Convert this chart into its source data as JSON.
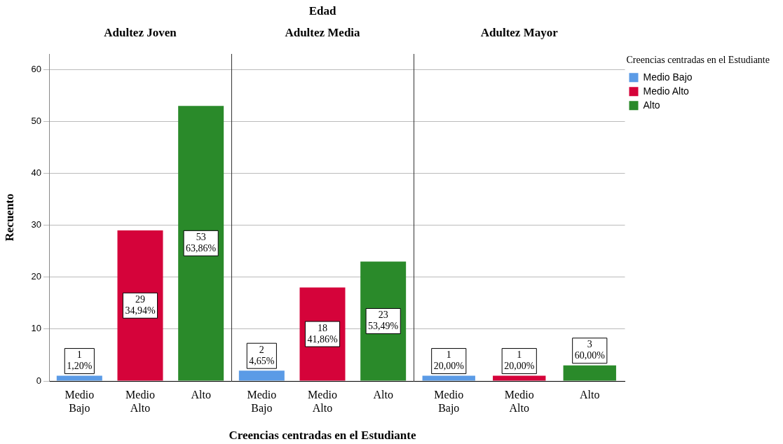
{
  "chart_data": [
    {
      "type": "bar",
      "stacked": true,
      "title": "Adultez Joven",
      "ylabel": "Recuento",
      "categories": [
        "Medio Bajo",
        "Medio Alto",
        "Alto"
      ],
      "series": [
        {
          "color": "#5b9be6",
          "values": [
            1,
            null,
            null
          ],
          "value_labels": [
            "1\n1,20%",
            null,
            null
          ]
        },
        {
          "color": "#d5033a",
          "values": [
            null,
            29,
            null
          ],
          "value_labels": [
            null,
            "29\n34,94%",
            null
          ]
        },
        {
          "color": "#2a8a2a",
          "values": [
            null,
            null,
            53
          ],
          "value_labels": [
            null,
            null,
            "53\n63,86%"
          ]
        }
      ],
      "ylim": [
        0,
        63
      ],
      "yticks": [
        0,
        10,
        20,
        30,
        40,
        50,
        60
      ],
      "grid": "y"
    },
    {
      "type": "bar",
      "stacked": true,
      "title": "Adultez Media",
      "annotations": [
        "Edad"
      ],
      "xlabel": "Creencias centradas en el Estudiante",
      "categories": [
        "Medio Bajo",
        "Medio Alto",
        "Alto"
      ],
      "series": [
        {
          "color": "#5b9be6",
          "values": [
            2,
            null,
            null
          ],
          "value_labels": [
            "2\n4,65%",
            null,
            null
          ]
        },
        {
          "color": "#d5033a",
          "values": [
            null,
            18,
            null
          ],
          "value_labels": [
            null,
            "18\n41,86%",
            null
          ]
        },
        {
          "color": "#2a8a2a",
          "values": [
            null,
            null,
            23
          ],
          "value_labels": [
            null,
            null,
            "23\n53,49%"
          ]
        }
      ],
      "ylim": [
        0,
        63
      ],
      "yticks": [
        0,
        10,
        20,
        30,
        40,
        50,
        60
      ],
      "grid": "y",
      "tick_labels": "x"
    },
    {
      "type": "bar",
      "stacked": true,
      "title": "Adultez Mayor",
      "legend_title": "Creencias centradas en el Estudiante",
      "legend": "right",
      "categories": [
        "Medio Bajo",
        "Medio Alto",
        "Alto"
      ],
      "series": [
        {
          "name": "Medio Bajo",
          "color": "#5b9be6",
          "values": [
            1,
            null,
            null
          ],
          "value_labels": [
            "1\n20,00%",
            null,
            null
          ]
        },
        {
          "name": "Medio Alto",
          "color": "#d5033a",
          "values": [
            null,
            1,
            null
          ],
          "value_labels": [
            null,
            "1\n20,00%",
            null
          ]
        },
        {
          "name": "Alto",
          "color": "#2a8a2a",
          "values": [
            null,
            null,
            3
          ],
          "value_labels": [
            null,
            null,
            "3\n60,00%"
          ]
        }
      ],
      "ylim": [
        0,
        63
      ],
      "yticks": [
        0,
        10,
        20,
        30,
        40,
        50,
        60
      ],
      "grid": "y",
      "tick_labels": "x"
    }
  ]
}
